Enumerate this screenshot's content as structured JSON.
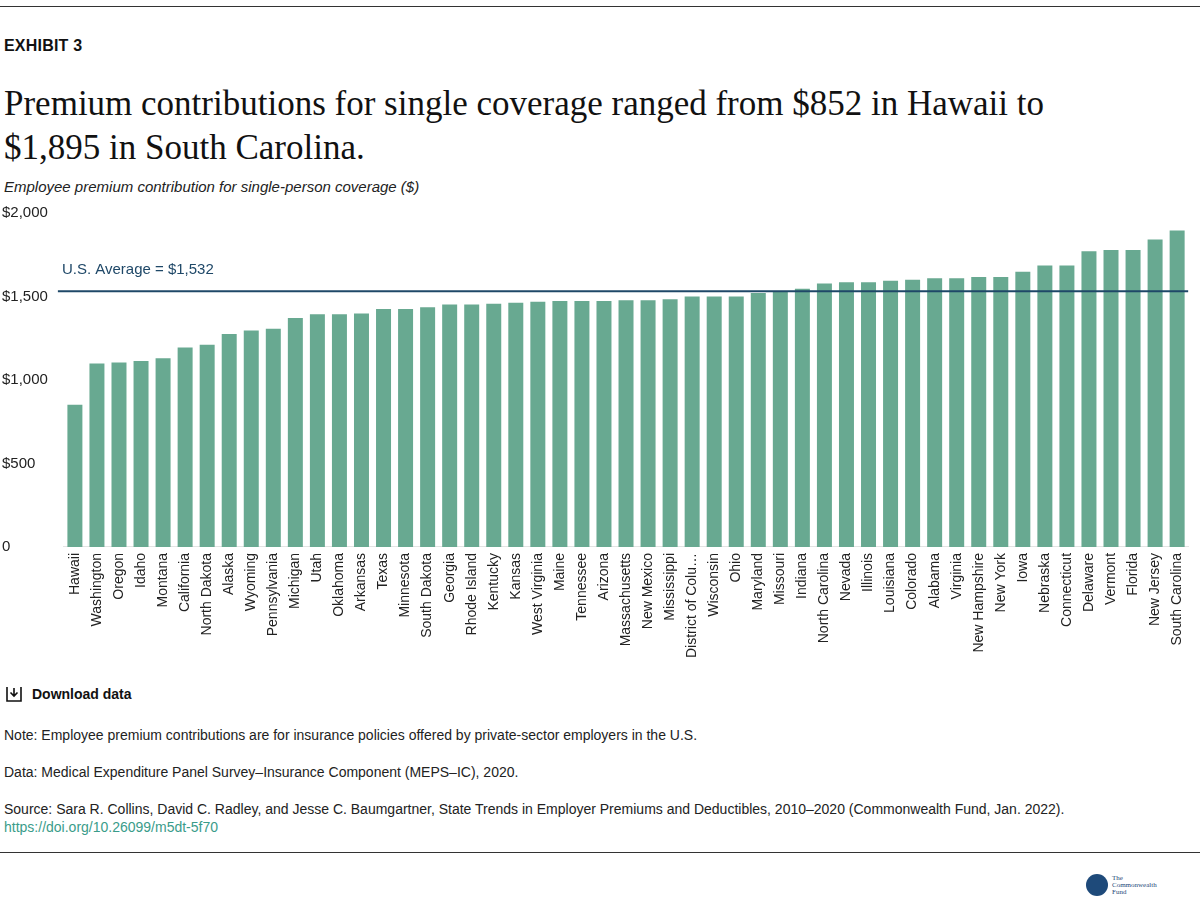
{
  "chart_data": {
    "type": "bar",
    "exhibit": "EXHIBIT 3",
    "title": "Premium contributions for single coverage ranged from $852 in Hawaii to $1,895 in South Carolina.",
    "subtitle": "Employee premium contribution for single-person coverage ($)",
    "categories": [
      "Hawaii",
      "Washington",
      "Oregon",
      "Idaho",
      "Montana",
      "California",
      "North Dakota",
      "Alaska",
      "Wyoming",
      "Pennsylvania",
      "Michigan",
      "Utah",
      "Oklahoma",
      "Arkansas",
      "Texas",
      "Minnesota",
      "South Dakota",
      "Georgia",
      "Rhode Island",
      "Kentucky",
      "Kansas",
      "West Virginia",
      "Maine",
      "Tennessee",
      "Arizona",
      "Massachusetts",
      "New Mexico",
      "Mississippi",
      "District of Colu…",
      "Wisconsin",
      "Ohio",
      "Maryland",
      "Missouri",
      "Indiana",
      "North Carolina",
      "Nevada",
      "Illinois",
      "Louisiana",
      "Colorado",
      "Alabama",
      "Virginia",
      "New Hampshire",
      "New York",
      "Iowa",
      "Nebraska",
      "Connecticut",
      "Delaware",
      "Vermont",
      "Florida",
      "New Jersey",
      "South Carolina"
    ],
    "values": [
      852,
      1098,
      1104,
      1114,
      1130,
      1195,
      1211,
      1275,
      1296,
      1307,
      1371,
      1393,
      1393,
      1398,
      1425,
      1425,
      1436,
      1452,
      1452,
      1457,
      1462,
      1468,
      1473,
      1473,
      1473,
      1478,
      1478,
      1484,
      1500,
      1500,
      1500,
      1521,
      1528,
      1547,
      1578,
      1586,
      1586,
      1594,
      1601,
      1609,
      1609,
      1617,
      1617,
      1648,
      1686,
      1686,
      1771,
      1779,
      1779,
      1841,
      1895
    ],
    "color": "#68a991",
    "ylim": [
      0,
      2000
    ],
    "yticks": [
      0,
      {
        "value": 500,
        "label": "$500"
      },
      {
        "value": 1000,
        "label": "$1,000"
      },
      {
        "value": 1500,
        "label": "$1,500"
      },
      {
        "value": 2000,
        "label": "$2,000"
      }
    ],
    "grid": false,
    "reference_line": {
      "label": "U.S. Average = $1,532",
      "value": 1532,
      "color": "#1f4868"
    },
    "download": "Download data",
    "notes": [
      "Note: Employee premium contributions are for insurance policies offered by private-sector employers in the U.S.",
      "Data: Medical Expenditure Panel Survey–Insurance Component (MEPS–IC), 2020.",
      "Source: Sara R. Collins, David C. Radley, and Jesse C. Baumgartner, State Trends in Employer Premiums and Deductibles, 2010–2020 (Commonwealth Fund, Jan. 2022)."
    ],
    "source_link": "https://doi.org/10.26099/m5dt-5f70",
    "logo": [
      "The",
      "Commonwealth",
      "Fund"
    ]
  }
}
